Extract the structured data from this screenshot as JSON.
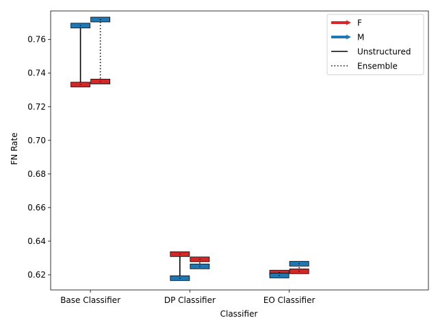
{
  "chart_data": {
    "type": "box",
    "xlabel": "Classifier",
    "ylabel": "FN Rate",
    "categories": [
      "Base Classifier",
      "DP Classifier",
      "EO Classifier"
    ],
    "ylim": [
      0.611,
      0.777
    ],
    "yticks": [
      0.62,
      0.64,
      0.66,
      0.68,
      0.7,
      0.72,
      0.74,
      0.76
    ],
    "ytick_labels": [
      "0.62",
      "0.64",
      "0.66",
      "0.68",
      "0.70",
      "0.72",
      "0.74",
      "0.76"
    ],
    "legend_position": "top-right",
    "groups": [
      {
        "name": "F",
        "color": "#d62728"
      },
      {
        "name": "M",
        "color": "#1f77b4"
      }
    ],
    "styles": [
      {
        "name": "Unstructured",
        "line": "solid"
      },
      {
        "name": "Ensemble",
        "line": "dotted"
      }
    ],
    "series": [
      {
        "style": "Unstructured",
        "values": [
          {
            "F": 0.7332,
            "M": 0.7683
          },
          {
            "F": 0.6323,
            "M": 0.618
          },
          {
            "F": 0.6213,
            "M": 0.6196
          }
        ]
      },
      {
        "style": "Ensemble",
        "values": [
          {
            "F": 0.735,
            "M": 0.7719
          },
          {
            "F": 0.6292,
            "M": 0.625
          },
          {
            "F": 0.6221,
            "M": 0.6266
          }
        ]
      }
    ]
  }
}
